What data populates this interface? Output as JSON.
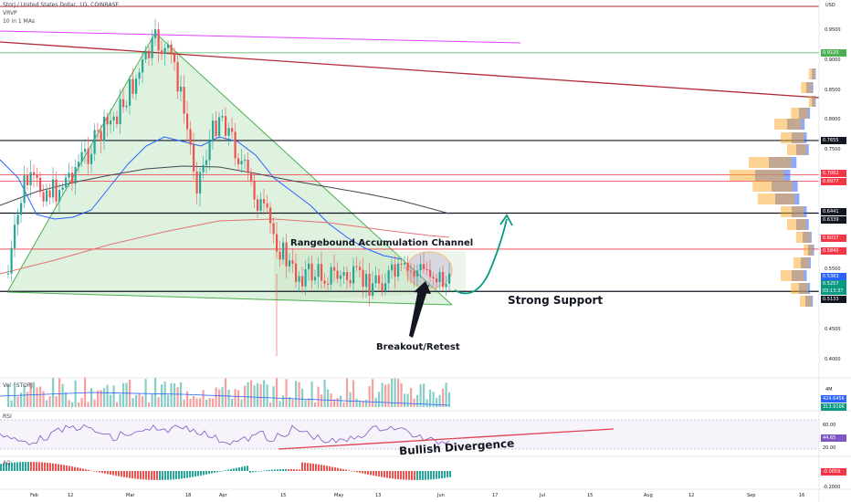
{
  "header": {
    "symbol": "Storj / United States Dollar, 1D, COINBASE",
    "currency": "USD",
    "indicator_vrvp": "VRVP",
    "indicator_mas": "10 in 1 MAs"
  },
  "chart_data": {
    "type": "candlestick",
    "x_axis_labels": [
      "Feb",
      "12",
      "Mar",
      "18",
      "Apr",
      "15",
      "May",
      "13",
      "Jun",
      "17",
      "Jul",
      "15",
      "Aug",
      "12",
      "Sep",
      "16"
    ],
    "price_axis_ticks": [
      "0.9500",
      "0.9000",
      "0.8500",
      "0.8000",
      "0.7500",
      "0.5500",
      "0.4500",
      "0.4000"
    ],
    "ylim": [
      0.4,
      0.95
    ],
    "price_tags": [
      {
        "value": "0.9120",
        "color": "#4caf50"
      },
      {
        "value": "0.7655",
        "color": "#131722"
      },
      {
        "value": "0.7082",
        "color": "#f23645"
      },
      {
        "value": "0.6977",
        "color": "#f23645"
      },
      {
        "value": "0.6441",
        "color": "#131722"
      },
      {
        "value": "0.6339",
        "color": "#131722"
      },
      {
        "value": "0.6037",
        "color": "#f23645"
      },
      {
        "value": "0.5840",
        "color": "#f23645"
      },
      {
        "value": "0.5383",
        "color": "#2962ff"
      },
      {
        "value": "0.5257",
        "color": "#089981"
      },
      {
        "value": "03:13:37",
        "color": "#089981"
      },
      {
        "value": "0.5133",
        "color": "#131722"
      }
    ],
    "horizontal_levels": [
      {
        "price": 0.912,
        "color": "#4caf50"
      },
      {
        "price": 0.7655,
        "color": "#131722"
      },
      {
        "price": 0.7082,
        "color": "#f23645"
      },
      {
        "price": 0.6977,
        "color": "#f23645"
      },
      {
        "price": 0.6441,
        "color": "#131722"
      },
      {
        "price": 0.584,
        "color": "#f23645"
      },
      {
        "price": 0.5133,
        "color": "#131722"
      }
    ],
    "volume_panel": {
      "label": "Vol · STORJ",
      "tags": [
        "424.645K",
        "313.916K"
      ],
      "tick": "4M"
    },
    "rsi_panel": {
      "label": "RSI",
      "ticks": [
        "60.00",
        "20.00"
      ],
      "tag": "44.65"
    },
    "ao_panel": {
      "label": "AO",
      "tag": "-0.0059",
      "tick": "-0.2000"
    }
  },
  "annotations": {
    "channel": "Rangebound Accumulation Channel",
    "support": "Strong Support",
    "breakout": "Breakout/Retest",
    "divergence": "Bullish Divergence"
  },
  "colors": {
    "up": "#26a69a",
    "down": "#ef5350",
    "triangle": "#4caf50",
    "resistance": "#b22833"
  }
}
